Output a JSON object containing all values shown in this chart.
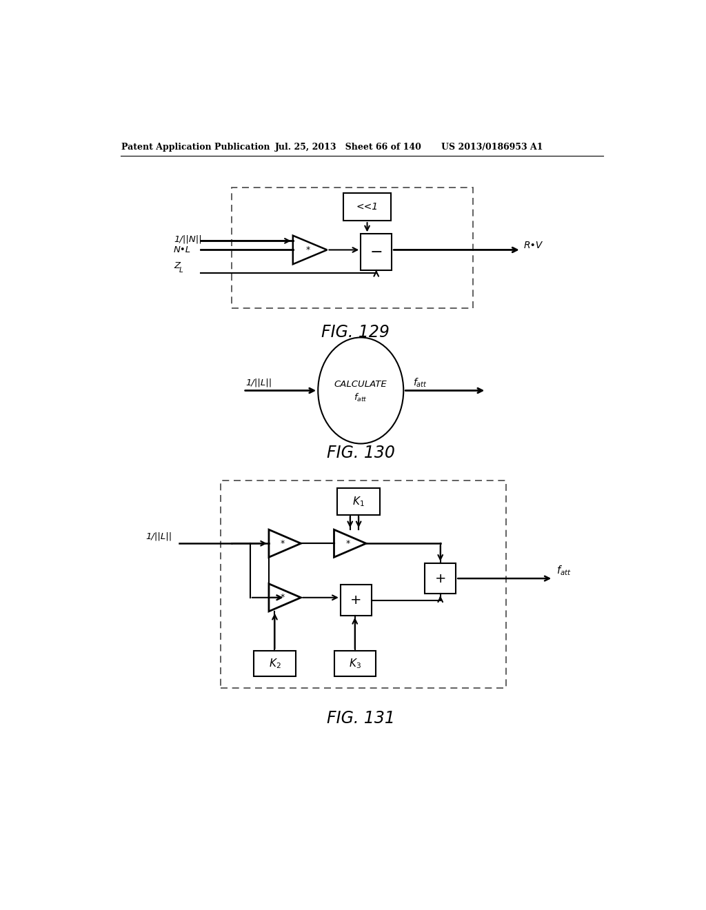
{
  "header_left": "Patent Application Publication",
  "header_mid": "Jul. 25, 2013   Sheet 66 of 140",
  "header_right": "US 2013/0186953 A1",
  "fig129_label": "FIG. 129",
  "fig130_label": "FIG. 130",
  "fig131_label": "FIG. 131",
  "bg_color": "#ffffff",
  "line_color": "#000000"
}
